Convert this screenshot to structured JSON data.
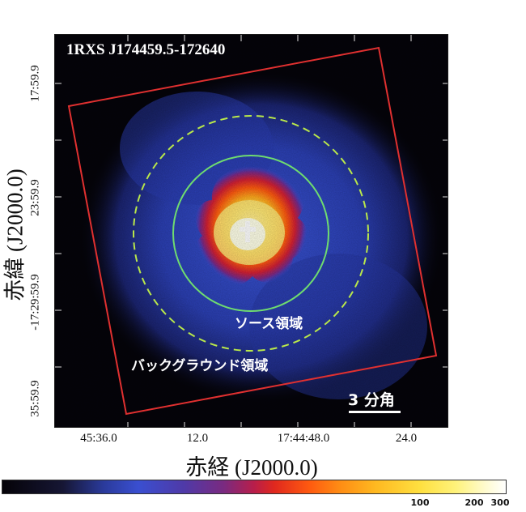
{
  "image": {
    "target_name": "1RXS J174459.5-172640",
    "source_region_label": "ソース領域",
    "background_region_label": "バックグラウンド領域",
    "scale_bar_label": "3 分角",
    "colors": {
      "field_outline": "#e03030",
      "source_circle": "#6fdc6f",
      "background_circle": "#b9e84a"
    }
  },
  "axes": {
    "x_title": "赤経 (J2000.0)",
    "y_title": "赤緯 (J2000.0)",
    "x_ticks": [
      "45:36.0",
      "12.0",
      "17:44:48.0",
      "24.0"
    ],
    "y_ticks": [
      "17:59.9",
      "23:59.9",
      "-17:29:59.9",
      "35:59.9"
    ]
  },
  "colorbar": {
    "tick_labels": [
      "100",
      "200",
      "300"
    ]
  }
}
